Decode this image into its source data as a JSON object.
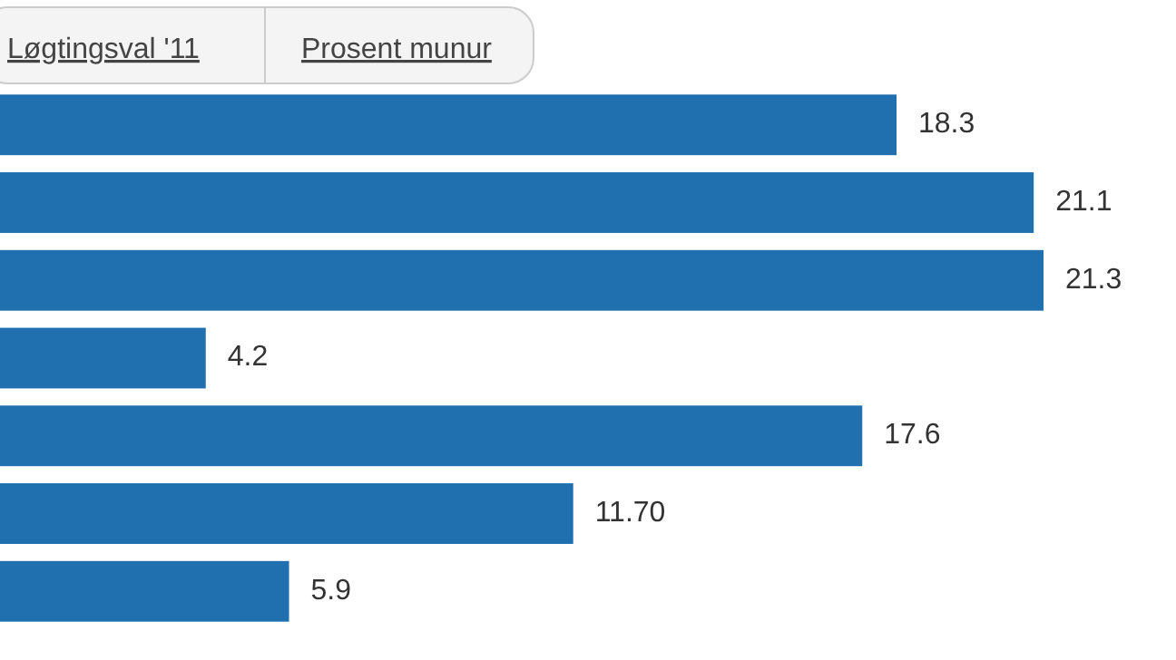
{
  "chart_data": {
    "type": "bar",
    "orientation": "horizontal",
    "categories": [
      null,
      null,
      null,
      null,
      null,
      null,
      null
    ],
    "values": [
      18.3,
      21.1,
      21.3,
      4.2,
      17.6,
      11.7,
      5.9
    ],
    "value_labels": [
      "18.3",
      "21.1",
      "21.3",
      "4.2",
      "17.6",
      "11.70",
      "5.9"
    ],
    "color": "#2070b0",
    "annotations": [
      "Løgtingsval '11",
      "Prosent munur"
    ]
  }
}
